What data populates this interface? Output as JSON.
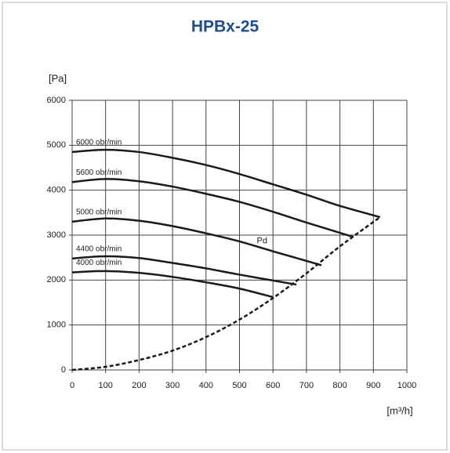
{
  "chart_data": {
    "type": "line",
    "title": "HPBx-25",
    "ylabel": "[Pa]",
    "xlabel": "[m³/h]",
    "xlim": [
      0,
      1000
    ],
    "xticks": [
      0,
      100,
      200,
      300,
      400,
      500,
      600,
      700,
      800,
      900,
      1000
    ],
    "ylim": [
      0,
      6000
    ],
    "yticks": [
      0,
      1000,
      2000,
      3000,
      4000,
      5000,
      6000
    ],
    "grid": true,
    "series": [
      {
        "name": "6000 obr/min",
        "color": "#1a1a1a",
        "x": [
          0,
          100,
          200,
          300,
          400,
          500,
          600,
          700,
          800,
          920
        ],
        "values": [
          4850,
          4900,
          4850,
          4720,
          4560,
          4360,
          4130,
          3900,
          3650,
          3400
        ]
      },
      {
        "name": "5600 obr/min",
        "color": "#1a1a1a",
        "x": [
          0,
          100,
          200,
          300,
          400,
          500,
          600,
          700,
          840
        ],
        "values": [
          4180,
          4250,
          4200,
          4080,
          3920,
          3740,
          3520,
          3280,
          2960
        ]
      },
      {
        "name": "5000 obr/min",
        "color": "#1a1a1a",
        "x": [
          0,
          100,
          200,
          300,
          400,
          500,
          600,
          745
        ],
        "values": [
          3300,
          3370,
          3320,
          3200,
          3040,
          2860,
          2640,
          2330
        ]
      },
      {
        "name": "4400 obr/min",
        "color": "#1a1a1a",
        "x": [
          0,
          100,
          200,
          300,
          400,
          500,
          670
        ],
        "values": [
          2480,
          2530,
          2490,
          2380,
          2260,
          2120,
          1900
        ]
      },
      {
        "name": "4000 obr/min",
        "color": "#1a1a1a",
        "x": [
          0,
          100,
          200,
          300,
          400,
          500,
          600
        ],
        "values": [
          2170,
          2200,
          2160,
          2070,
          1950,
          1810,
          1620
        ]
      },
      {
        "name": "Pd",
        "color": "#1a1a1a",
        "dashed": true,
        "x": [
          0,
          100,
          200,
          300,
          400,
          500,
          600,
          700,
          800,
          920
        ],
        "values": [
          0,
          70,
          220,
          430,
          730,
          1120,
          1600,
          2150,
          2750,
          3400
        ]
      }
    ]
  }
}
